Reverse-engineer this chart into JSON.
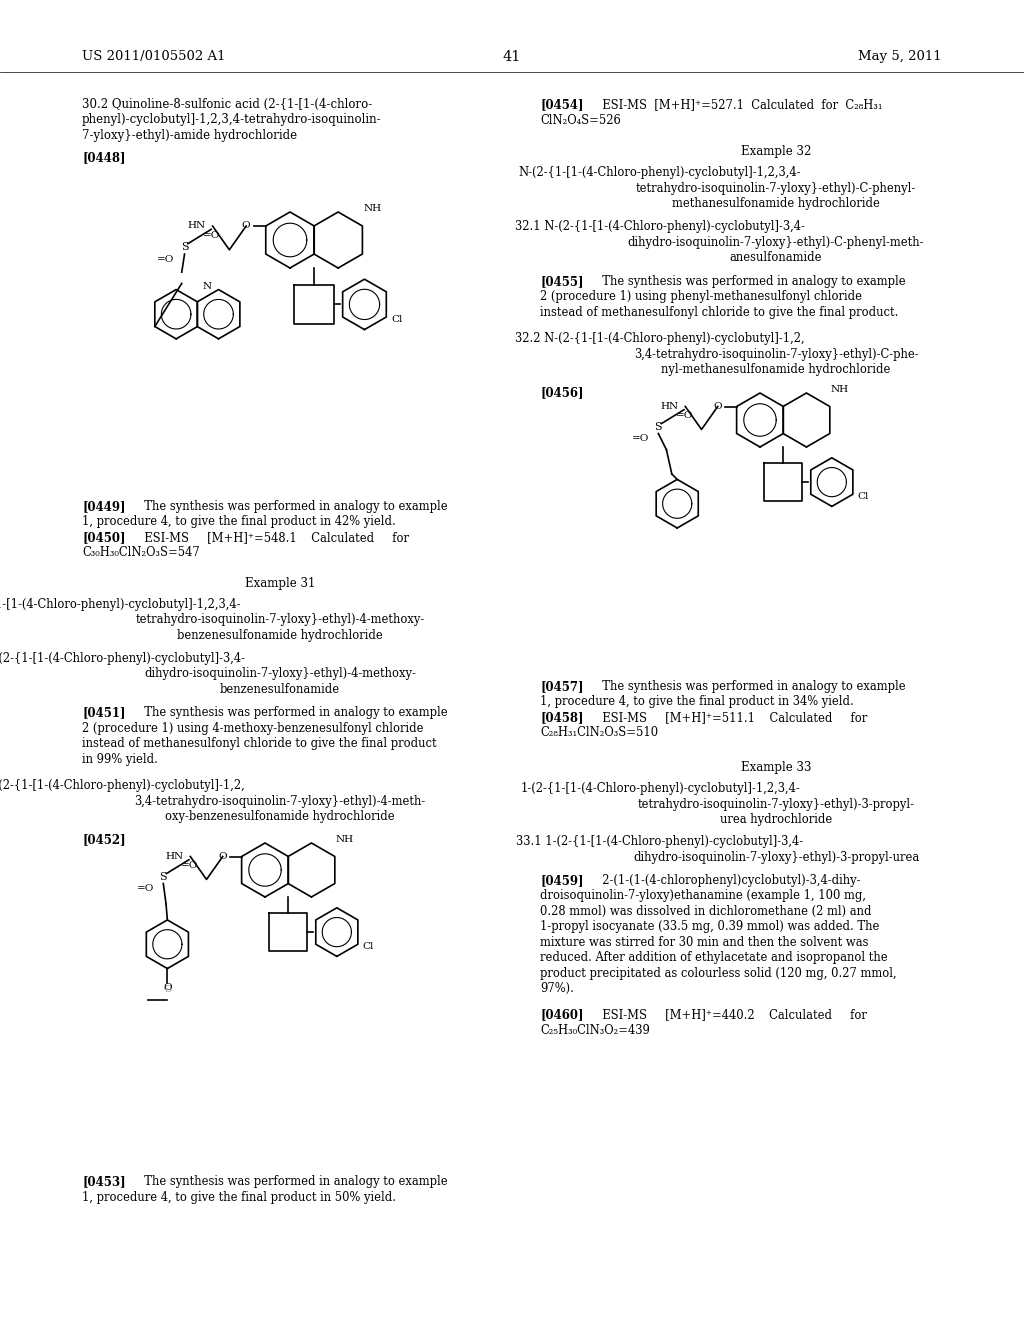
{
  "page_number": "41",
  "patent_number": "US 2011/0105502 A1",
  "date": "May 5, 2011",
  "background_color": "#ffffff"
}
